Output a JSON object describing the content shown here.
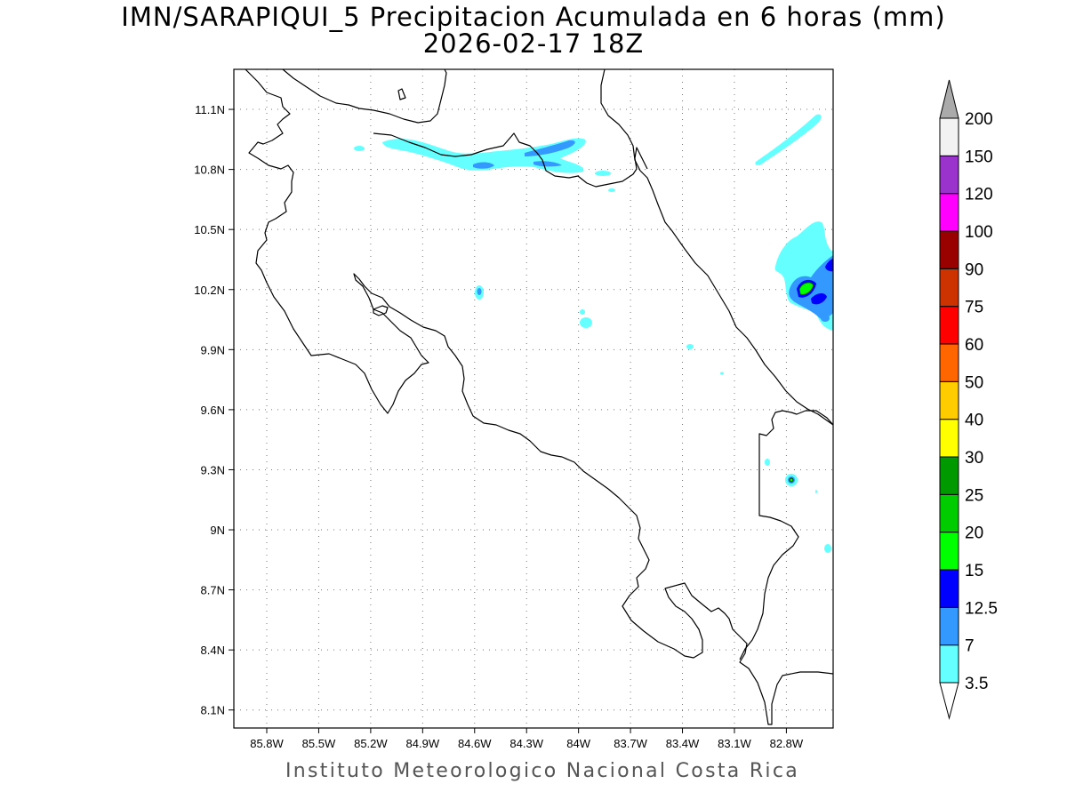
{
  "title": {
    "line1": "IMN/SARAPIQUI_5 Precipitacion Acumulada en 6 horas (mm)",
    "line2": "2026-02-17 18Z"
  },
  "footer": "Instituto Meteorologico Nacional Costa Rica",
  "chart_data": {
    "type": "map",
    "variable": "Precipitacion Acumulada en 6 horas (mm)",
    "x_ticks": [
      "85.8W",
      "85.5W",
      "85.2W",
      "84.9W",
      "84.6W",
      "84.3W",
      "84W",
      "83.7W",
      "83.4W",
      "83.1W",
      "82.8W"
    ],
    "x_values": [
      -85.8,
      -85.5,
      -85.2,
      -84.9,
      -84.6,
      -84.3,
      -84.0,
      -83.7,
      -83.4,
      -83.1,
      -82.8
    ],
    "y_ticks": [
      "11.1N",
      "10.8N",
      "10.5N",
      "10.2N",
      "9.9N",
      "9.6N",
      "9.3N",
      "9N",
      "8.7N",
      "8.4N",
      "8.1N"
    ],
    "y_values": [
      11.1,
      10.8,
      10.5,
      10.2,
      9.9,
      9.6,
      9.3,
      9.0,
      8.7,
      8.4,
      8.1
    ],
    "lon_range": [
      -85.99,
      -82.53
    ],
    "lat_range": [
      8.01,
      11.3
    ],
    "grid": true,
    "colorbar": {
      "position": "right",
      "labels": [
        "3.5",
        "7",
        "12.5",
        "15",
        "20",
        "25",
        "30",
        "40",
        "50",
        "60",
        "75",
        "90",
        "100",
        "120",
        "150",
        "200"
      ],
      "colors": [
        "#66ffff",
        "#3399ff",
        "#0000ff",
        "#00ff00",
        "#00cc00",
        "#009900",
        "#ffff00",
        "#ffcc00",
        "#ff6600",
        "#ff0000",
        "#cc3300",
        "#990000",
        "#ff00ff",
        "#9933cc",
        "#f2f2f2"
      ],
      "under_color": "#ffffff",
      "over_color": "#aaaaaa"
    },
    "precip_areas": [
      {
        "lon": -84.55,
        "lat": 10.86,
        "value": "3.5-7",
        "color": "#66ffff"
      },
      {
        "lon": -84.56,
        "lat": 10.84,
        "value": "7-12.5",
        "color": "#3399ff"
      },
      {
        "lon": -84.1,
        "lat": 10.91,
        "value": "7-12.5",
        "color": "#3399ff"
      },
      {
        "lon": -84.57,
        "lat": 10.19,
        "value": "3.5-7",
        "color": "#66ffff"
      },
      {
        "lon": -84.05,
        "lat": 10.04,
        "value": "3.5-7",
        "color": "#66ffff"
      },
      {
        "lon": -82.65,
        "lat": 10.22,
        "value": "12.5-20",
        "color": "#00ff00"
      },
      {
        "lon": -82.75,
        "lat": 9.25,
        "value": "7-12.5",
        "color": "#3399ff"
      }
    ]
  }
}
